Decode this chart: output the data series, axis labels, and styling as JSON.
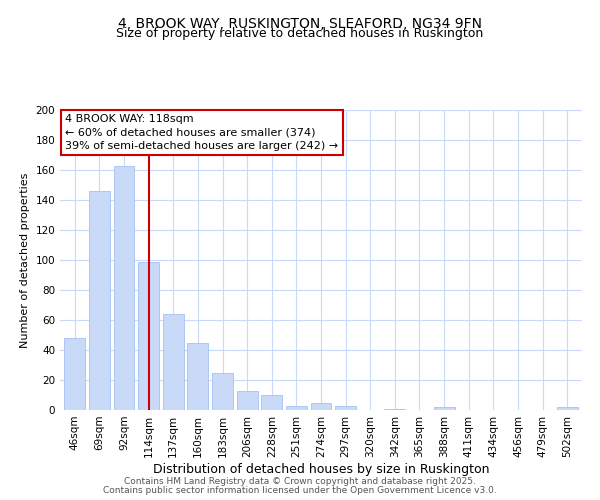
{
  "title": "4, BROOK WAY, RUSKINGTON, SLEAFORD, NG34 9FN",
  "subtitle": "Size of property relative to detached houses in Ruskington",
  "xlabel": "Distribution of detached houses by size in Ruskington",
  "ylabel": "Number of detached properties",
  "categories": [
    "46sqm",
    "69sqm",
    "92sqm",
    "114sqm",
    "137sqm",
    "160sqm",
    "183sqm",
    "206sqm",
    "228sqm",
    "251sqm",
    "274sqm",
    "297sqm",
    "320sqm",
    "342sqm",
    "365sqm",
    "388sqm",
    "411sqm",
    "434sqm",
    "456sqm",
    "479sqm",
    "502sqm"
  ],
  "values": [
    48,
    146,
    163,
    99,
    64,
    45,
    25,
    13,
    10,
    3,
    5,
    3,
    0,
    1,
    0,
    2,
    0,
    0,
    0,
    0,
    2
  ],
  "bar_color": "#c9daf8",
  "bar_edge_color": "#a4c2f4",
  "grid_color": "#c9daf8",
  "vline_x_index": 3,
  "vline_color": "#cc0000",
  "annotation_line1": "4 BROOK WAY: 118sqm",
  "annotation_line2": "← 60% of detached houses are smaller (374)",
  "annotation_line3": "39% of semi-detached houses are larger (242) →",
  "annotation_box_edgecolor": "#cc0000",
  "annotation_box_facecolor": "#ffffff",
  "ylim": [
    0,
    200
  ],
  "yticks": [
    0,
    20,
    40,
    60,
    80,
    100,
    120,
    140,
    160,
    180,
    200
  ],
  "footer_line1": "Contains HM Land Registry data © Crown copyright and database right 2025.",
  "footer_line2": "Contains public sector information licensed under the Open Government Licence v3.0.",
  "title_fontsize": 10,
  "subtitle_fontsize": 9,
  "xlabel_fontsize": 9,
  "ylabel_fontsize": 8,
  "tick_fontsize": 7.5,
  "annotation_fontsize": 8,
  "footer_fontsize": 6.5
}
